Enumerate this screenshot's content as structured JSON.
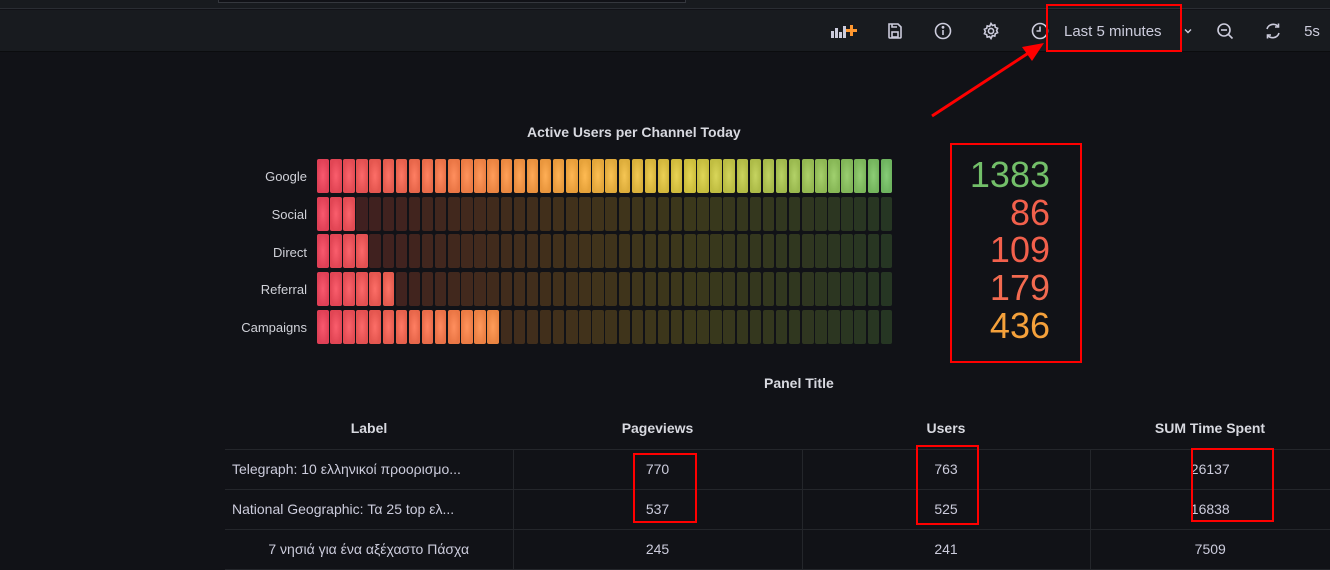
{
  "toolbar": {
    "add_panel_icon": "add-panel-icon",
    "save_icon": "save-icon",
    "info_icon": "info-icon",
    "settings_icon": "gear-icon",
    "time_picker": {
      "icon": "clock-icon",
      "label": "Last 5 minutes"
    },
    "zoom_out_icon": "zoom-out-icon",
    "refresh": {
      "icon": "refresh-icon",
      "interval": "5s"
    }
  },
  "gauge_panel": {
    "title": "Active Users per Channel Today",
    "total_cells": 44,
    "rows": [
      {
        "label": "Google",
        "value": 1383,
        "lit_cells": 44,
        "color": "#73bf69"
      },
      {
        "label": "Social",
        "value": 86,
        "lit_cells": 3,
        "color": "#f2495c"
      },
      {
        "label": "Direct",
        "value": 109,
        "lit_cells": 4,
        "color": "#f2495c"
      },
      {
        "label": "Referral",
        "value": 179,
        "lit_cells": 6,
        "color": "#f2604c"
      },
      {
        "label": "Campaigns",
        "value": 436,
        "lit_cells": 14,
        "color": "#ff9830"
      }
    ],
    "stat_values": [
      "1383",
      "86",
      "109",
      "179",
      "436"
    ],
    "stat_colors": [
      "#73bf69",
      "#f2604c",
      "#f2604c",
      "#f26a50",
      "#f5a13b"
    ]
  },
  "table_panel": {
    "title": "Panel Title",
    "columns": [
      "Label",
      "Pageviews",
      "Users",
      "SUM Time Spent"
    ],
    "rows": [
      [
        "Telegraph: 10 ελληνικοί προορισμο...",
        "770",
        "763",
        "26137"
      ],
      [
        "National Geographic: Τα 25 top ελ...",
        "537",
        "525",
        "16838"
      ],
      [
        "7 νησιά για ένα αξέχαστο Πάσχα",
        "245",
        "241",
        "7509"
      ]
    ]
  },
  "annotation_color": "#ff0000"
}
